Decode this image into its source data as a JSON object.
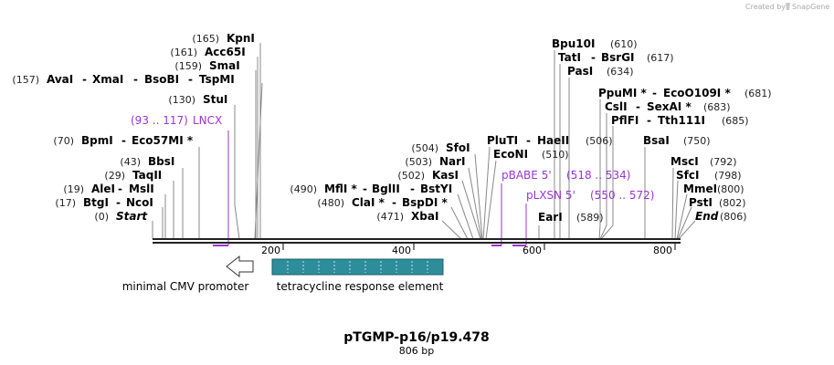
{
  "watermark": {
    "prefix": "Created by",
    "brand": "SnapGene"
  },
  "title": "pTGMP-p16/p19.478",
  "length_label": "806 bp",
  "axis": {
    "ticks": [
      "200",
      "400",
      "600",
      "800"
    ]
  },
  "sites": [
    {
      "pos": "(165)",
      "name": "KpnI"
    },
    {
      "pos": "(161)",
      "name": "Acc65I"
    },
    {
      "pos": "(159)",
      "name": "SmaI"
    },
    {
      "pos": "(157)",
      "name": "AvaI",
      "others": [
        "XmaI",
        "BsoBI",
        "TspMI"
      ]
    },
    {
      "pos": "(130)",
      "name": "StuI"
    },
    {
      "pos": "(70)",
      "name": "BpmI",
      "others": [
        "Eco57MI *"
      ]
    },
    {
      "pos": "(43)",
      "name": "BbsI"
    },
    {
      "pos": "(29)",
      "name": "TaqII"
    },
    {
      "pos": "(19)",
      "name": "AleI",
      "others": [
        "MslI"
      ]
    },
    {
      "pos": "(17)",
      "name": "BtgI",
      "others": [
        "NcoI"
      ]
    },
    {
      "pos": "(0)",
      "name": "Start"
    },
    {
      "pos": "(504)",
      "name": "SfoI"
    },
    {
      "pos": "(503)",
      "name": "NarI"
    },
    {
      "pos": "(502)",
      "name": "KasI"
    },
    {
      "pos": "(490)",
      "name": "MflI *",
      "others": [
        "BglII",
        "BstYI"
      ]
    },
    {
      "pos": "(480)",
      "name": "ClaI *",
      "others": [
        "BspDI *"
      ]
    },
    {
      "pos": "(471)",
      "name": "XbaI"
    },
    {
      "pos": "(506)",
      "name": "PluTI",
      "others": [
        "HaeII"
      ]
    },
    {
      "pos": "(510)",
      "name": "EcoNI"
    },
    {
      "pos": "(589)",
      "name": "EarI"
    },
    {
      "pos": "(610)",
      "name": "Bpu10I"
    },
    {
      "pos": "(617)",
      "name": "TatI",
      "others": [
        "BsrGI"
      ]
    },
    {
      "pos": "(634)",
      "name": "PasI"
    },
    {
      "pos": "(681)",
      "name": "PpuMI *",
      "others": [
        "EcoO109I *"
      ]
    },
    {
      "pos": "(683)",
      "name": "CslI",
      "others": [
        "SexAI *"
      ]
    },
    {
      "pos": "(685)",
      "name": "PflFI",
      "others": [
        "Tth111I"
      ]
    },
    {
      "pos": "(750)",
      "name": "BsaI"
    },
    {
      "pos": "(792)",
      "name": "MscI"
    },
    {
      "pos": "(798)",
      "name": "SfcI"
    },
    {
      "pos": "(800)",
      "name": "MmeI"
    },
    {
      "pos": "(802)",
      "name": "PstI"
    },
    {
      "pos": "(806)",
      "name": "End"
    }
  ],
  "primers": [
    {
      "name": "LNCX",
      "range": "(93 .. 117)"
    },
    {
      "name": "pBABE 5'",
      "range": "(518 .. 534)"
    },
    {
      "name": "pLXSN 5'",
      "range": "(550 .. 572)"
    }
  ],
  "features": [
    {
      "name": "minimal CMV promoter",
      "color": "#ffffff"
    },
    {
      "name": "tetracycline response element",
      "color": "#2e8d9a"
    }
  ],
  "colors": {
    "primer": "#9a35d6",
    "backbone": "#222222",
    "tre": "#2e8d9a"
  }
}
